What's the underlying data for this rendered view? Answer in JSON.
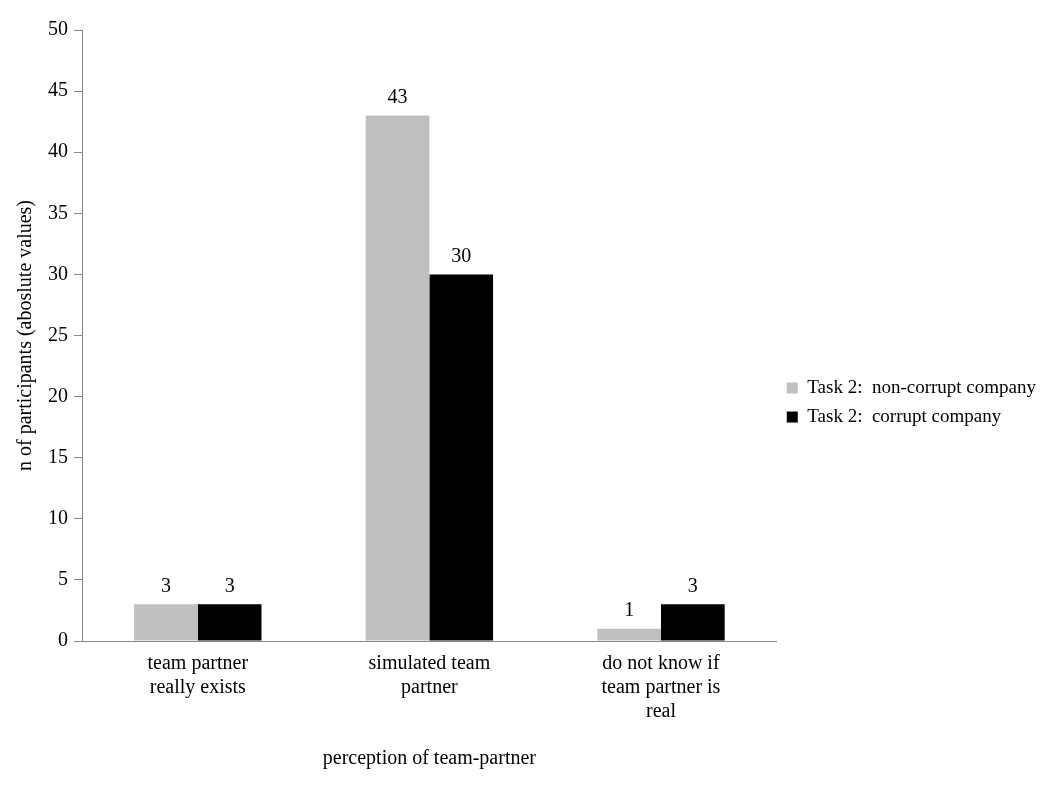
{
  "chart_data": {
    "type": "bar",
    "xlabel": "perception of team-partner",
    "ylabel": "n of participants (aboslute values)",
    "categories": [
      "team partner really exists",
      "simulated team partner",
      "do not know if team partner is real"
    ],
    "series": [
      {
        "name": "Task 2:  non-corrupt company",
        "color": "#bfbfbf",
        "values": [
          3,
          43,
          1
        ]
      },
      {
        "name": "Task 2:  corrupt company",
        "color": "#000000",
        "values": [
          3,
          30,
          3
        ]
      }
    ],
    "ylim": [
      0,
      50
    ],
    "yticks": [
      0,
      5,
      10,
      15,
      20,
      25,
      30,
      35,
      40,
      45,
      50
    ],
    "grid": false,
    "legend": "right",
    "data_labels": true
  }
}
